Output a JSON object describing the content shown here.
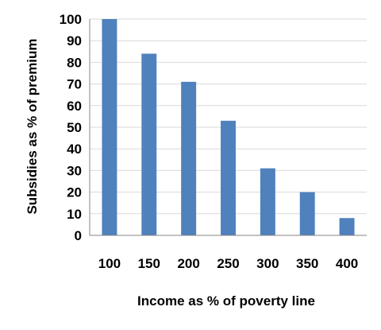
{
  "chart_data": {
    "type": "bar",
    "categories": [
      "100",
      "150",
      "200",
      "250",
      "300",
      "350",
      "400"
    ],
    "values": [
      100,
      84,
      71,
      53,
      31,
      20,
      8
    ],
    "title": "",
    "xlabel": "Income as % of poverty line",
    "ylabel": "Subsidies as % of premium",
    "ylim": [
      0,
      100
    ],
    "yticks": [
      0,
      10,
      20,
      30,
      40,
      50,
      60,
      70,
      80,
      90,
      100
    ],
    "grid": true,
    "legend": "none",
    "bar_color": "#4F81BD",
    "grid_color": "#D9D9D9",
    "axis_color": "#868686"
  }
}
